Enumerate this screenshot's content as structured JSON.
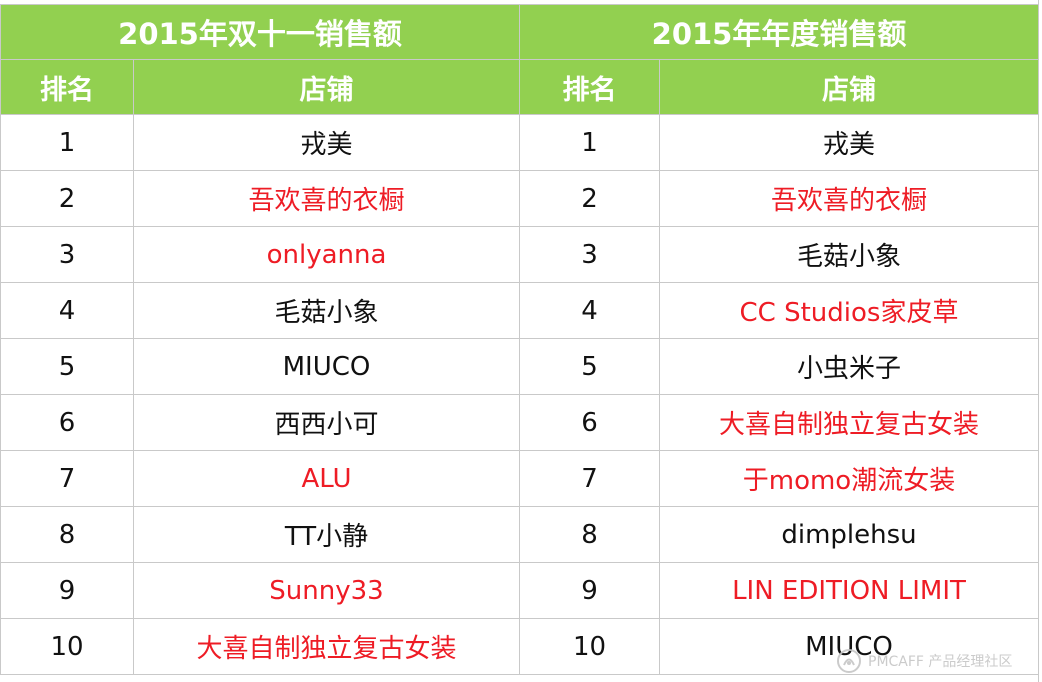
{
  "table": {
    "left_title": "2015年双十一销售额",
    "right_title": "2015年年度销售额",
    "headers": {
      "rank": "排名",
      "shop": "店铺"
    },
    "left": [
      {
        "rank": "1",
        "shop": "戎美",
        "color": "#111111"
      },
      {
        "rank": "2",
        "shop": "吾欢喜的衣橱",
        "color": "#ee1c25"
      },
      {
        "rank": "3",
        "shop": "onlyanna",
        "color": "#ee1c25"
      },
      {
        "rank": "4",
        "shop": "毛菇小象",
        "color": "#111111"
      },
      {
        "rank": "5",
        "shop": "MIUCO",
        "color": "#111111"
      },
      {
        "rank": "6",
        "shop": "西西小可",
        "color": "#111111"
      },
      {
        "rank": "7",
        "shop": "ALU",
        "color": "#ee1c25"
      },
      {
        "rank": "8",
        "shop": "TT小静",
        "color": "#111111"
      },
      {
        "rank": "9",
        "shop": "Sunny33",
        "color": "#ee1c25"
      },
      {
        "rank": "10",
        "shop": "大喜自制独立复古女装",
        "color": "#ee1c25"
      }
    ],
    "right": [
      {
        "rank": "1",
        "shop": "戎美",
        "color": "#111111"
      },
      {
        "rank": "2",
        "shop": "吾欢喜的衣橱",
        "color": "#ee1c25"
      },
      {
        "rank": "3",
        "shop": "毛菇小象",
        "color": "#111111"
      },
      {
        "rank": "4",
        "shop": "CC Studios家皮草",
        "color": "#ee1c25"
      },
      {
        "rank": "5",
        "shop": "小虫米子",
        "color": "#111111"
      },
      {
        "rank": "6",
        "shop": "大喜自制独立复古女装",
        "color": "#ee1c25"
      },
      {
        "rank": "7",
        "shop": "于momo潮流女装",
        "color": "#ee1c25"
      },
      {
        "rank": "8",
        "shop": "dimplehsu",
        "color": "#111111"
      },
      {
        "rank": "9",
        "shop": "LIN EDITION LIMIT",
        "color": "#ee1c25"
      },
      {
        "rank": "10",
        "shop": "MIUCO",
        "color": "#111111"
      }
    ]
  },
  "colors": {
    "header_bg": "#92d050",
    "header_text": "#ffffff",
    "highlight": "#ee1c25",
    "normal": "#111111",
    "grid": "#c9c9c9"
  },
  "watermark": {
    "text": "PMCAFF 产品经理社区",
    "icon": "pmcaff-logo-icon"
  }
}
